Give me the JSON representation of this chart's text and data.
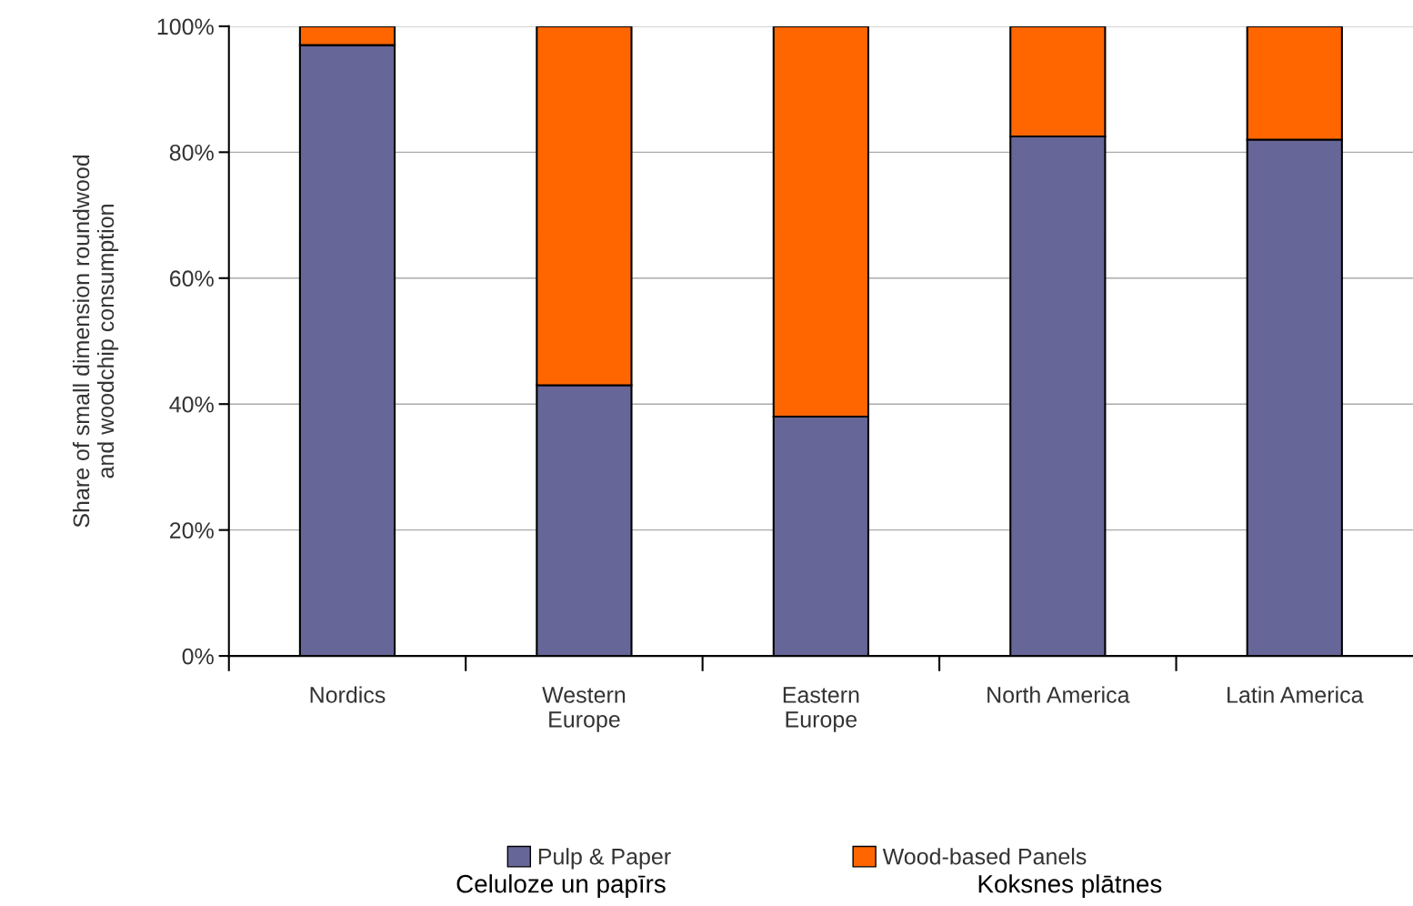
{
  "chart_data": {
    "type": "bar",
    "stacked": true,
    "ylabel": "Share of small dimension roundwood\nand woodchip consumption",
    "categories": [
      "Nordics",
      "Western\nEurope",
      "Eastern\nEurope",
      "North America",
      "Latin America"
    ],
    "series": [
      {
        "name": "Pulp & Paper",
        "color": "#666699",
        "values": [
          97,
          43,
          38,
          82.5,
          82
        ]
      },
      {
        "name": "Wood-based Panels",
        "color": "#ff6600",
        "values": [
          3,
          57,
          62,
          17.5,
          18
        ]
      }
    ],
    "ylim": [
      0,
      100
    ],
    "yticks": [
      {
        "value": 0,
        "label": "0%"
      },
      {
        "value": 20,
        "label": "20%"
      },
      {
        "value": 40,
        "label": "40%"
      },
      {
        "value": 60,
        "label": "60%"
      },
      {
        "value": 80,
        "label": "80%"
      },
      {
        "value": 100,
        "label": "100%"
      }
    ],
    "grid": "y",
    "legend": "bottom",
    "annotations": [
      "Celuloze un papīrs",
      "Koksnes plātnes"
    ]
  }
}
